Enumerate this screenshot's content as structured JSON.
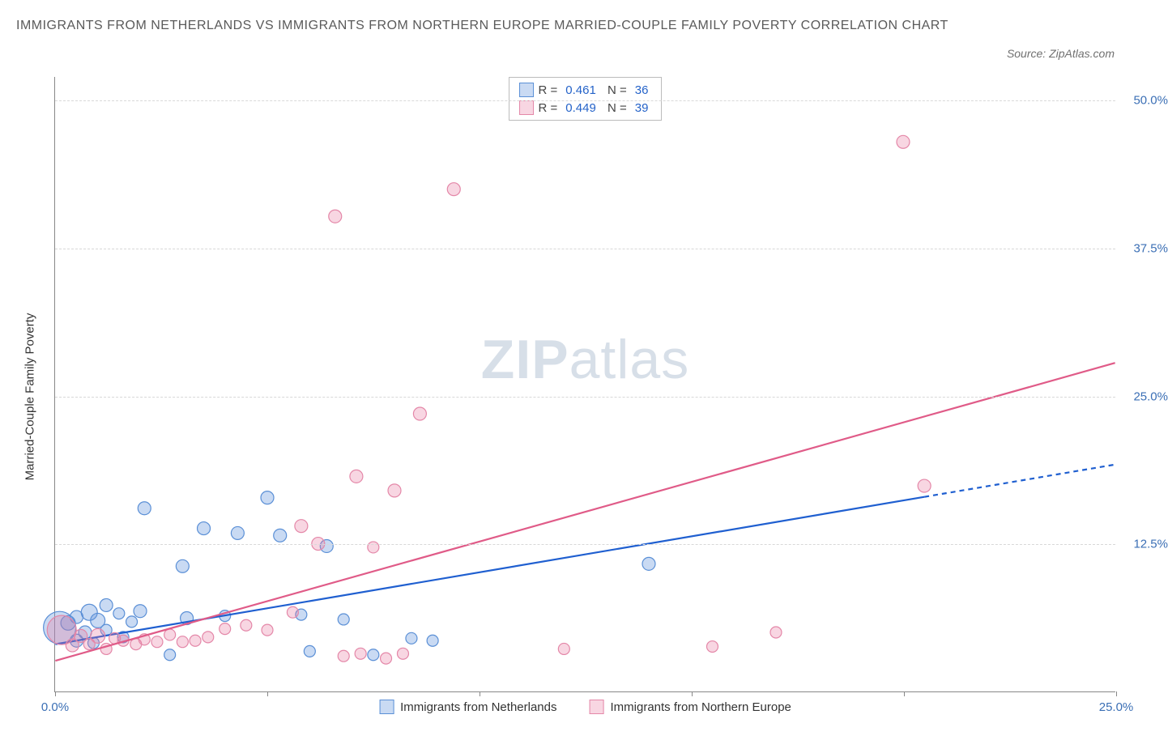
{
  "title": "IMMIGRANTS FROM NETHERLANDS VS IMMIGRANTS FROM NORTHERN EUROPE MARRIED-COUPLE FAMILY POVERTY CORRELATION CHART",
  "source_label": "Source: ZipAtlas.com",
  "watermark": {
    "bold": "ZIP",
    "rest": "atlas"
  },
  "y_axis_label": "Married-Couple Family Poverty",
  "chart": {
    "type": "scatter",
    "background_color": "#ffffff",
    "grid_color": "#d8d8d8",
    "axis_color": "#888888",
    "xlim": [
      0,
      25
    ],
    "ylim": [
      0,
      52
    ],
    "x_ticks": [
      0,
      5,
      10,
      15,
      20,
      25
    ],
    "x_tick_labels": [
      "0.0%",
      "",
      "",
      "",
      "",
      "25.0%"
    ],
    "y_ticks": [
      12.5,
      25.0,
      37.5,
      50.0
    ],
    "y_tick_labels": [
      "12.5%",
      "25.0%",
      "37.5%",
      "50.0%"
    ],
    "series": [
      {
        "name": "Immigrants from Netherlands",
        "legend_label": "Immigrants from Netherlands",
        "color_fill": "rgba(99,148,222,0.35)",
        "color_stroke": "#5a8fd6",
        "trend_color": "#1f5fd0",
        "trend_width": 2.2,
        "R": "0.461",
        "N": "36",
        "trend": {
          "x1": 0,
          "y1": 4.0,
          "x2": 25,
          "y2": 19.2,
          "solid_until_x": 20.5
        },
        "points": [
          {
            "x": 0.1,
            "y": 5.4,
            "r": 20
          },
          {
            "x": 0.3,
            "y": 5.8,
            "r": 9
          },
          {
            "x": 0.5,
            "y": 4.3,
            "r": 8
          },
          {
            "x": 0.5,
            "y": 6.3,
            "r": 8
          },
          {
            "x": 0.7,
            "y": 5.0,
            "r": 8
          },
          {
            "x": 0.8,
            "y": 6.7,
            "r": 10
          },
          {
            "x": 0.9,
            "y": 4.1,
            "r": 7
          },
          {
            "x": 1.0,
            "y": 6.0,
            "r": 9
          },
          {
            "x": 1.2,
            "y": 5.2,
            "r": 7
          },
          {
            "x": 1.2,
            "y": 7.3,
            "r": 8
          },
          {
            "x": 1.5,
            "y": 6.6,
            "r": 7
          },
          {
            "x": 1.6,
            "y": 4.6,
            "r": 7
          },
          {
            "x": 1.8,
            "y": 5.9,
            "r": 7
          },
          {
            "x": 2.0,
            "y": 6.8,
            "r": 8
          },
          {
            "x": 2.1,
            "y": 15.5,
            "r": 8
          },
          {
            "x": 2.7,
            "y": 3.1,
            "r": 7
          },
          {
            "x": 3.0,
            "y": 10.6,
            "r": 8
          },
          {
            "x": 3.1,
            "y": 6.2,
            "r": 8
          },
          {
            "x": 3.5,
            "y": 13.8,
            "r": 8
          },
          {
            "x": 4.0,
            "y": 6.4,
            "r": 7
          },
          {
            "x": 4.3,
            "y": 13.4,
            "r": 8
          },
          {
            "x": 5.0,
            "y": 16.4,
            "r": 8
          },
          {
            "x": 5.3,
            "y": 13.2,
            "r": 8
          },
          {
            "x": 5.8,
            "y": 6.5,
            "r": 7
          },
          {
            "x": 6.0,
            "y": 3.4,
            "r": 7
          },
          {
            "x": 6.4,
            "y": 12.3,
            "r": 8
          },
          {
            "x": 6.8,
            "y": 6.1,
            "r": 7
          },
          {
            "x": 7.5,
            "y": 3.1,
            "r": 7
          },
          {
            "x": 8.4,
            "y": 4.5,
            "r": 7
          },
          {
            "x": 8.9,
            "y": 4.3,
            "r": 7
          },
          {
            "x": 14.0,
            "y": 10.8,
            "r": 8
          }
        ]
      },
      {
        "name": "Immigrants from Northern Europe",
        "legend_label": "Immigrants from Northern Europe",
        "color_fill": "rgba(232,120,160,0.30)",
        "color_stroke": "#e487a8",
        "trend_color": "#e05b88",
        "trend_width": 2.2,
        "R": "0.449",
        "N": "39",
        "trend": {
          "x1": 0,
          "y1": 2.6,
          "x2": 25,
          "y2": 27.8,
          "solid_until_x": 25
        },
        "points": [
          {
            "x": 0.15,
            "y": 5.2,
            "r": 18
          },
          {
            "x": 0.4,
            "y": 3.9,
            "r": 8
          },
          {
            "x": 0.6,
            "y": 4.7,
            "r": 8
          },
          {
            "x": 0.8,
            "y": 4.0,
            "r": 7
          },
          {
            "x": 1.0,
            "y": 4.7,
            "r": 9
          },
          {
            "x": 1.2,
            "y": 3.6,
            "r": 7
          },
          {
            "x": 1.4,
            "y": 4.5,
            "r": 7
          },
          {
            "x": 1.6,
            "y": 4.3,
            "r": 7
          },
          {
            "x": 1.9,
            "y": 4.0,
            "r": 7
          },
          {
            "x": 2.1,
            "y": 4.4,
            "r": 7
          },
          {
            "x": 2.4,
            "y": 4.2,
            "r": 7
          },
          {
            "x": 2.7,
            "y": 4.8,
            "r": 7
          },
          {
            "x": 3.0,
            "y": 4.2,
            "r": 7
          },
          {
            "x": 3.3,
            "y": 4.3,
            "r": 7
          },
          {
            "x": 3.6,
            "y": 4.6,
            "r": 7
          },
          {
            "x": 4.0,
            "y": 5.3,
            "r": 7
          },
          {
            "x": 4.5,
            "y": 5.6,
            "r": 7
          },
          {
            "x": 5.0,
            "y": 5.2,
            "r": 7
          },
          {
            "x": 5.6,
            "y": 6.7,
            "r": 7
          },
          {
            "x": 5.8,
            "y": 14.0,
            "r": 8
          },
          {
            "x": 6.2,
            "y": 12.5,
            "r": 8
          },
          {
            "x": 6.6,
            "y": 40.2,
            "r": 8
          },
          {
            "x": 6.8,
            "y": 3.0,
            "r": 7
          },
          {
            "x": 7.1,
            "y": 18.2,
            "r": 8
          },
          {
            "x": 7.2,
            "y": 3.2,
            "r": 7
          },
          {
            "x": 7.5,
            "y": 12.2,
            "r": 7
          },
          {
            "x": 7.8,
            "y": 2.8,
            "r": 7
          },
          {
            "x": 8.0,
            "y": 17.0,
            "r": 8
          },
          {
            "x": 8.2,
            "y": 3.2,
            "r": 7
          },
          {
            "x": 8.6,
            "y": 23.5,
            "r": 8
          },
          {
            "x": 9.4,
            "y": 42.5,
            "r": 8
          },
          {
            "x": 12.0,
            "y": 3.6,
            "r": 7
          },
          {
            "x": 15.5,
            "y": 3.8,
            "r": 7
          },
          {
            "x": 17.0,
            "y": 5.0,
            "r": 7
          },
          {
            "x": 20.5,
            "y": 17.4,
            "r": 8
          },
          {
            "x": 20.0,
            "y": 46.5,
            "r": 8
          }
        ]
      }
    ]
  }
}
